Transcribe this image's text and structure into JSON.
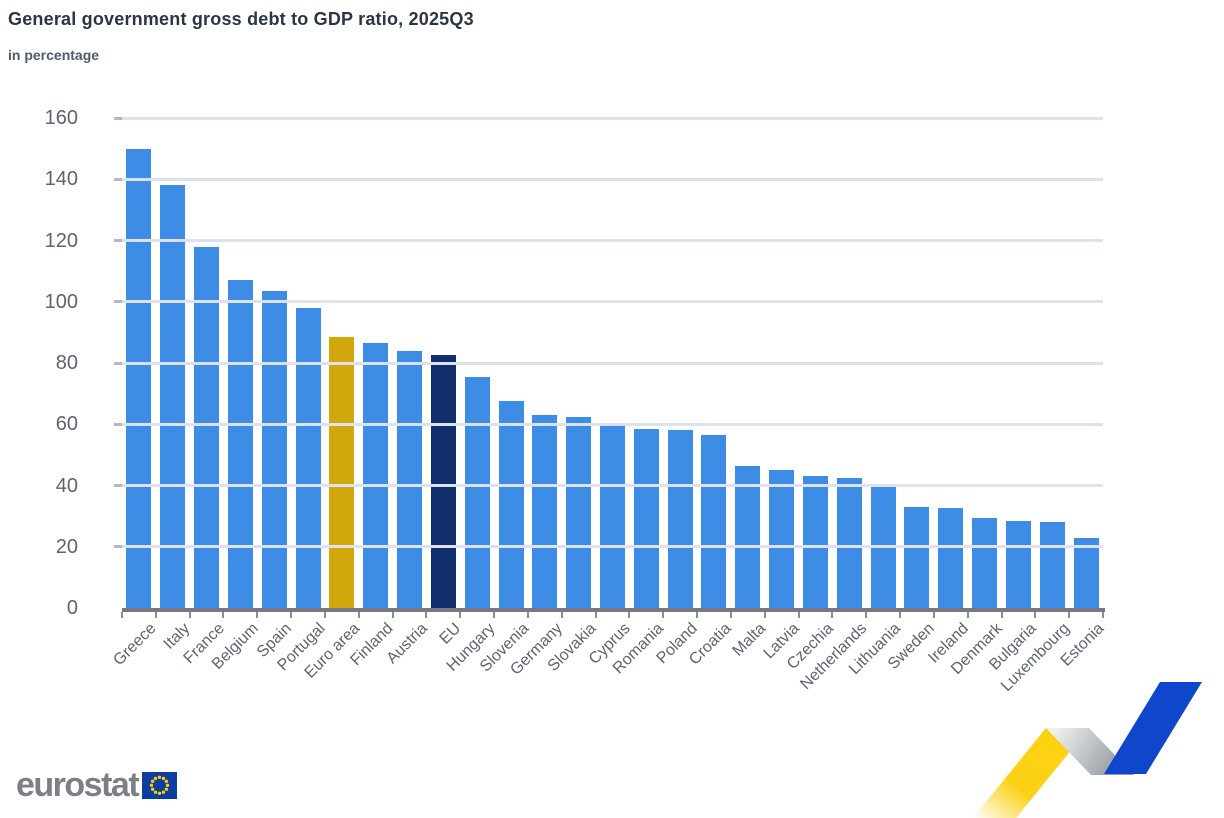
{
  "header": {
    "title": "General government gross debt to GDP ratio, 2025Q3",
    "subtitle": "in percentage"
  },
  "footer": {
    "logo_text": "eurostat"
  },
  "chart_data": {
    "type": "bar",
    "title": "General government gross debt to GDP ratio, 2025Q3",
    "subtitle": "in percentage",
    "xlabel": "",
    "ylabel": "in percentage",
    "ylim": [
      0,
      160
    ],
    "yticks": [
      0,
      20,
      40,
      60,
      80,
      100,
      120,
      140,
      160
    ],
    "grid": "horizontal gridlines drawn over bars",
    "legend_position": "none",
    "categories": [
      "Greece",
      "Italy",
      "France",
      "Belgium",
      "Spain",
      "Portugal",
      "Euro area",
      "Finland",
      "Austria",
      "EU",
      "Hungary",
      "Slovenia",
      "Germany",
      "Slovakia",
      "Cyprus",
      "Romania",
      "Poland",
      "Croatia",
      "Malta",
      "Latvia",
      "Czechia",
      "Netherlands",
      "Lithuania",
      "Sweden",
      "Ireland",
      "Denmark",
      "Bulgaria",
      "Luxembourg",
      "Estonia"
    ],
    "values": [
      150,
      138,
      118,
      107,
      103.5,
      98,
      88.5,
      86.5,
      84,
      82.5,
      75.5,
      67.5,
      63,
      62.5,
      60.5,
      58.5,
      58,
      56.5,
      46.5,
      45,
      43,
      42.5,
      40.5,
      33,
      32.5,
      29.5,
      28.5,
      28,
      23
    ],
    "highlighted": {
      "euro_area_index": 6,
      "eu_index": 9
    },
    "colors": {
      "member": "#3d8ce5",
      "euro_area": "#d2a70b",
      "eu": "#122f6d",
      "gridline": "#dde2ee",
      "axis_line": "#77797e",
      "axis_text": "#5d6370",
      "title_text": "#2c3544"
    }
  },
  "branding": {
    "flag_blue": "#0c3ea2",
    "star_yellow": "#ffcc00",
    "ribbon_yellow": "#fcd20f",
    "ribbon_blue": "#0e47cb"
  }
}
